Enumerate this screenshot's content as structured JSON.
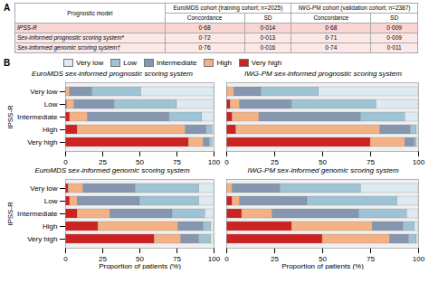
{
  "chart_data": [
    {
      "type": "table",
      "panel": "A",
      "row_header": "Prognostic model",
      "header_groups": [
        {
          "label": "EuroMDS cohort (training cohort; n=2025)",
          "columns": [
            "Concordance",
            "SD"
          ]
        },
        {
          "label": "IWG-PM cohort (validation cohort; n=2387)",
          "columns": [
            "Concordance",
            "SD"
          ]
        }
      ],
      "rows": [
        [
          "IPSS-R",
          "0·68",
          "0·014",
          "0·68",
          "0·009"
        ],
        [
          "Sex-informed prognostic scoring system*",
          "0·72",
          "0·013",
          "0·71",
          "0·009"
        ],
        [
          "Sex-informed genomic scoring system†",
          "0·76",
          "0·016",
          "0·74",
          "0·011"
        ]
      ]
    },
    {
      "type": "bar",
      "panel": "B",
      "legend": "top",
      "orientation": "horizontal",
      "stacked": true,
      "title": "EuroMDS sex-informed prognostic scoring system",
      "ylabel": "IPSS-R",
      "categories": [
        "Very high",
        "High",
        "Intermediate",
        "Low",
        "Very low"
      ],
      "xlim": [
        0,
        100
      ],
      "xticks": [
        0,
        25,
        50,
        75,
        100
      ],
      "series": [
        {
          "name": "Very high",
          "color": "#cc2222",
          "values": [
            83,
            8,
            3,
            1,
            0
          ]
        },
        {
          "name": "High",
          "color": "#f4b183",
          "values": [
            10,
            73,
            12,
            5,
            3
          ]
        },
        {
          "name": "Intermediate",
          "color": "#8496b0",
          "values": [
            4,
            14,
            55,
            27,
            15
          ]
        },
        {
          "name": "Low",
          "color": "#9dc3d4",
          "values": [
            2,
            4,
            22,
            42,
            33
          ]
        },
        {
          "name": "Very low",
          "color": "#deeaf1",
          "values": [
            1,
            1,
            8,
            25,
            49
          ]
        }
      ]
    },
    {
      "type": "bar",
      "orientation": "horizontal",
      "stacked": true,
      "tick_labels": "x",
      "title": "IWG-PM sex-informed prognostic scoring system",
      "categories": [
        "Very high",
        "High",
        "Intermediate",
        "Low",
        "Very low"
      ],
      "xlim": [
        0,
        100
      ],
      "xticks": [
        0,
        25,
        50,
        75,
        100
      ],
      "series": [
        {
          "name": "Very high",
          "color": "#cc2222",
          "values": [
            75,
            5,
            3,
            2,
            0
          ]
        },
        {
          "name": "High",
          "color": "#f4b183",
          "values": [
            18,
            75,
            14,
            5,
            4
          ]
        },
        {
          "name": "Intermediate",
          "color": "#8496b0",
          "values": [
            5,
            16,
            53,
            27,
            14
          ]
        },
        {
          "name": "Low",
          "color": "#9dc3d4",
          "values": [
            1,
            3,
            23,
            44,
            30
          ]
        },
        {
          "name": "Very low",
          "color": "#deeaf1",
          "values": [
            1,
            1,
            7,
            22,
            52
          ]
        }
      ]
    },
    {
      "type": "bar",
      "orientation": "horizontal",
      "stacked": true,
      "title": "EuroMDS sex-informed genomic scoring system",
      "ylabel": "IPSS-R",
      "xlabel": "Proportion of patients (%)",
      "categories": [
        "Very high",
        "High",
        "Intermediate",
        "Low",
        "Very low"
      ],
      "xlim": [
        0,
        100
      ],
      "xticks": [
        0,
        25,
        50,
        75,
        100
      ],
      "series": [
        {
          "name": "Very high",
          "color": "#cc2222",
          "values": [
            60,
            22,
            8,
            3,
            2
          ]
        },
        {
          "name": "High",
          "color": "#f4b183",
          "values": [
            18,
            54,
            22,
            5,
            10
          ]
        },
        {
          "name": "Intermediate",
          "color": "#8496b0",
          "values": [
            12,
            17,
            42,
            42,
            35
          ]
        },
        {
          "name": "Low",
          "color": "#9dc3d4",
          "values": [
            8,
            5,
            22,
            40,
            43
          ]
        },
        {
          "name": "Very low",
          "color": "#deeaf1",
          "values": [
            2,
            2,
            6,
            10,
            10
          ]
        }
      ]
    },
    {
      "type": "bar",
      "orientation": "horizontal",
      "stacked": true,
      "tick_labels": "x",
      "title": "IWG-PM sex-informed genomic scoring system",
      "xlabel": "Proportion of patients (%)",
      "categories": [
        "Very high",
        "High",
        "Intermediate",
        "Low",
        "Very low"
      ],
      "xlim": [
        0,
        100
      ],
      "xticks": [
        0,
        25,
        50,
        75,
        100
      ],
      "series": [
        {
          "name": "Very high",
          "color": "#cc2222",
          "values": [
            50,
            34,
            8,
            3,
            0
          ]
        },
        {
          "name": "High",
          "color": "#f4b183",
          "values": [
            35,
            42,
            16,
            4,
            3
          ]
        },
        {
          "name": "Intermediate",
          "color": "#8496b0",
          "values": [
            10,
            16,
            45,
            35,
            25
          ]
        },
        {
          "name": "Low",
          "color": "#9dc3d4",
          "values": [
            4,
            6,
            25,
            47,
            42
          ]
        },
        {
          "name": "Very low",
          "color": "#deeaf1",
          "values": [
            1,
            2,
            6,
            11,
            30
          ]
        }
      ]
    }
  ]
}
